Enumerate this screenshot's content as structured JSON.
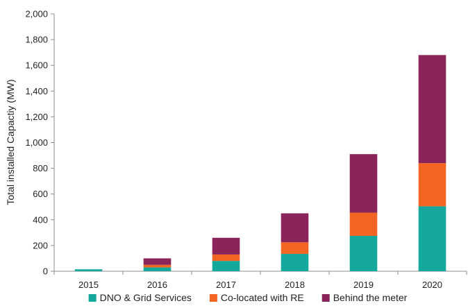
{
  "chart_data": {
    "type": "bar",
    "stacked": true,
    "title": "",
    "xlabel": "",
    "ylabel": "Total installed Capactiy (MW)",
    "ylim": [
      0,
      2000
    ],
    "yticks": [
      0,
      200,
      400,
      600,
      800,
      1000,
      1200,
      1400,
      1600,
      1800,
      2000
    ],
    "ytick_labels": [
      "0",
      "200",
      "400",
      "600",
      "800",
      "1,000",
      "1,200",
      "1,400",
      "1,600",
      "1,800",
      "2,000"
    ],
    "categories": [
      "2015",
      "2016",
      "2017",
      "2018",
      "2019",
      "2020"
    ],
    "series": [
      {
        "name": "DNO & Grid Services",
        "color": "#14a99c",
        "values": [
          15,
          30,
          80,
          135,
          275,
          505
        ]
      },
      {
        "name": "Co-located with RE",
        "color": "#f26522",
        "values": [
          0,
          20,
          50,
          90,
          180,
          335
        ]
      },
      {
        "name": "Behind the meter",
        "color": "#8b2458",
        "values": [
          0,
          50,
          130,
          225,
          455,
          840
        ]
      }
    ],
    "grid": false,
    "legend": "bottom"
  }
}
